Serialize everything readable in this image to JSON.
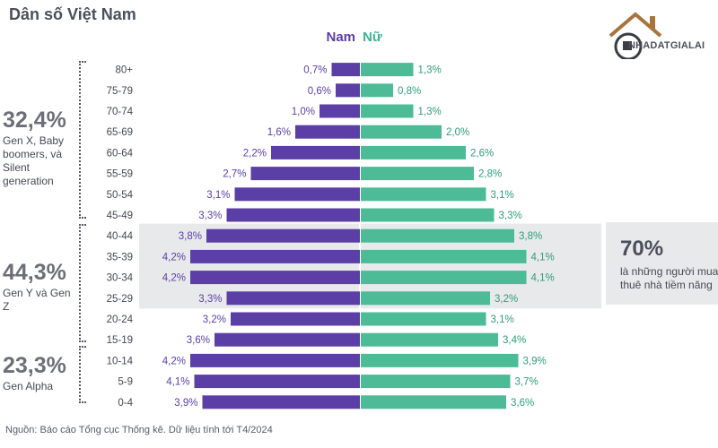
{
  "title": "Dân số Việt Nam",
  "legend": {
    "male": "Nam",
    "female": "Nữ"
  },
  "colors": {
    "male": "#5b3ea6",
    "female": "#4dbb96",
    "highlight": "#e8e9ea",
    "text": "#555a66"
  },
  "groups": [
    {
      "pct": "32,4%",
      "desc": "Gen X, Baby boomers, và Silent generation"
    },
    {
      "pct": "44,3%",
      "desc": "Gen Y và Gen Z"
    },
    {
      "pct": "23,3%",
      "desc": "Gen Alpha"
    }
  ],
  "callout": {
    "pct": "70%",
    "text_line1": "là những người mua",
    "text_line2": "thuê nhà tiềm năng"
  },
  "logo": {
    "text": "NHADATGIALAI",
    "icon": "house-icon"
  },
  "source": "Nguồn: Báo cáo Tổng cục Thống kê. Dữ liệu tính tới T4/2024",
  "chart_data": {
    "type": "bar",
    "orientation": "horizontal-diverging",
    "title": "Dân số Việt Nam",
    "categories": [
      "80+",
      "75-79",
      "70-74",
      "65-69",
      "60-64",
      "55-59",
      "50-54",
      "45-49",
      "40-44",
      "35-39",
      "30-34",
      "25-29",
      "20-24",
      "15-19",
      "10-14",
      "5-9",
      "0-4"
    ],
    "series": [
      {
        "name": "Nam",
        "values": [
          0.7,
          0.6,
          1.0,
          1.6,
          2.2,
          2.7,
          3.1,
          3.3,
          3.8,
          4.2,
          4.2,
          3.3,
          3.2,
          3.6,
          4.2,
          4.1,
          3.9
        ],
        "labels": [
          "0,7%",
          "0,6%",
          "1,0%",
          "1,6%",
          "2,2%",
          "2,7%",
          "3,1%",
          "3,3%",
          "3,8%",
          "4,2%",
          "4,2%",
          "3,3%",
          "3,2%",
          "3,6%",
          "4,2%",
          "4,1%",
          "3,9%"
        ]
      },
      {
        "name": "Nữ",
        "values": [
          1.3,
          0.8,
          1.3,
          2.0,
          2.6,
          2.8,
          3.1,
          3.3,
          3.8,
          4.1,
          4.1,
          3.2,
          3.1,
          3.4,
          3.9,
          3.7,
          3.6
        ],
        "labels": [
          "1,3%",
          "0,8%",
          "1,3%",
          "2,0%",
          "2,6%",
          "2,8%",
          "3,1%",
          "3,3%",
          "3,8%",
          "4,1%",
          "4,1%",
          "3,2%",
          "3,1%",
          "3,4%",
          "3,9%",
          "3,7%",
          "3,6%"
        ]
      }
    ],
    "highlight_rows": [
      "40-44",
      "35-39",
      "30-34",
      "25-29"
    ]
  }
}
